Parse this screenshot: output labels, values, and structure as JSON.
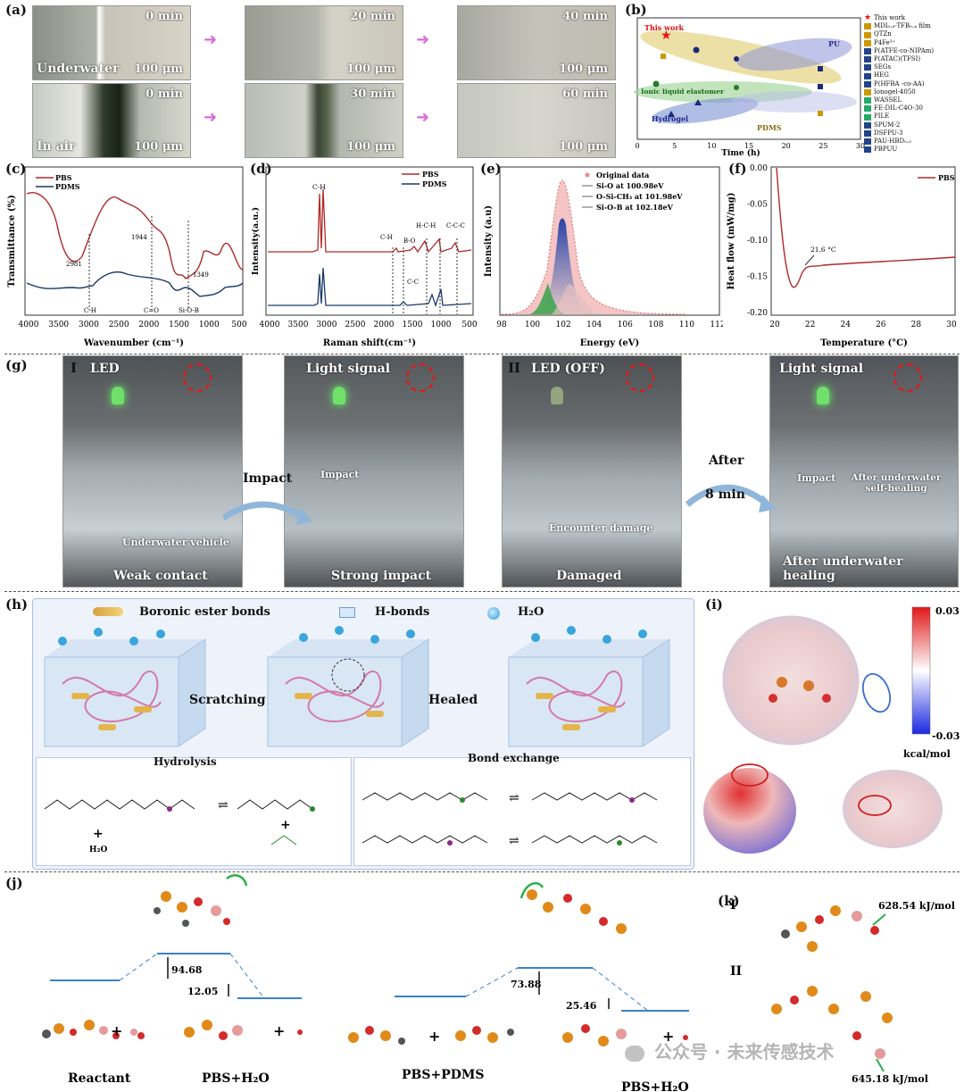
{
  "panels": {
    "a": {
      "label": "(a)",
      "times_top": [
        "0 min",
        "20 min",
        "40 min"
      ],
      "times_bottom": [
        "0 min",
        "30 min",
        "60 min"
      ],
      "scale": "100 μm",
      "label_underwater": "Underwater",
      "label_air": "In air"
    },
    "b": {
      "label": "(b)",
      "xlabel": "Time (h)",
      "xticks": [
        "0",
        "5",
        "10",
        "15",
        "20",
        "25",
        "30"
      ],
      "groups": [
        "This work",
        "PU",
        "Ionic liquid elastomer",
        "Hydrogel",
        "PDMS"
      ],
      "legend": [
        "This work",
        "MDI₀.₈-TFB₀.₄ film",
        "QTZn",
        "P4Fe³⁺",
        "P(ATFE-co-NIPAm)",
        "P(ATAC)(TFSI)",
        "SEGs",
        "HEG",
        "P(HFBA -co-AA)",
        "Ionogel-4050",
        "WASSEL",
        "FE-DIL-C4O-30",
        "PILE",
        "SPUM-2",
        "DSFPU-3",
        "PAU-HBD₀.₅",
        "PBPUU"
      ],
      "legend_colors": [
        "#e11",
        "#c90",
        "#c90",
        "#c90",
        "#248",
        "#248",
        "#248",
        "#248",
        "#248",
        "#c90",
        "#2a6",
        "#2a6",
        "#2a6",
        "#248",
        "#248",
        "#248",
        "#248"
      ]
    },
    "c": {
      "label": "(c)",
      "series": [
        "PBS",
        "PDMS"
      ],
      "ylabel": "Transmittance (%)",
      "xlabel": "Wavenumber (cm⁻¹)",
      "xticks": [
        "4000",
        "3500",
        "3000",
        "2500",
        "2000",
        "1500",
        "1000",
        "500"
      ],
      "annotations": [
        "2981",
        "1944",
        "1349",
        "C-H",
        "C=O",
        "Si-O-B"
      ]
    },
    "d": {
      "label": "(d)",
      "series": [
        "PBS",
        "PDMS"
      ],
      "ylabel": "Intensity(a.u.)",
      "xlabel": "Raman shift(cm⁻¹)",
      "xticks": [
        "4000",
        "3500",
        "3000",
        "2500",
        "2000",
        "1500",
        "1000",
        "500"
      ],
      "annotations": [
        "C-H",
        "C-H",
        "B-O",
        "H-C-H",
        "C-C-C",
        "C-C"
      ]
    },
    "e": {
      "label": "(e)",
      "ylabel": "Intensity (a.u)",
      "xlabel": "Energy  (eV)",
      "xticks": [
        "98",
        "100",
        "102",
        "104",
        "106",
        "108",
        "110",
        "112"
      ],
      "legend": [
        "Original data",
        "Si-O at 100.98eV",
        "O-Si-CH₃ at 101.98eV",
        "Si-O-B at 102.18eV"
      ]
    },
    "f": {
      "label": "(f)",
      "series": [
        "PBS"
      ],
      "ylabel": "Heat flow (mW/mg)",
      "xlabel": "Temperature (°C)",
      "xticks": [
        "20",
        "22",
        "24",
        "26",
        "28",
        "30"
      ],
      "yticks": [
        "0.00",
        "-0.05",
        "-0.10",
        "-0.15",
        "-0.20"
      ],
      "annotation": "21.6 °C"
    },
    "g": {
      "label": "(g)",
      "roman1": "I",
      "roman2": "II",
      "photos": [
        {
          "top": "LED",
          "bottom": "Weak contact",
          "mid": "Underwater vehicle"
        },
        {
          "top": "Light signal",
          "bottom": "Strong impact",
          "mid": "Impact"
        },
        {
          "top": "LED (OFF)",
          "bottom": "Damaged",
          "mid": "Encounter damage"
        },
        {
          "top": "Light signal",
          "bottom": "After underwater healing",
          "mid": "Impact",
          "mid2": "After underwater self-healing"
        }
      ],
      "arrow1": "Impact",
      "arrow2a": "After",
      "arrow2b": "8 min"
    },
    "h": {
      "label": "(h)",
      "legend": [
        "Boronic ester bonds",
        "H-bonds",
        "H₂O"
      ],
      "steps": [
        "Scratching",
        "Healed"
      ],
      "sub1": "Hydrolysis",
      "sub2": "Bond exchange",
      "water": "H₂O"
    },
    "i": {
      "label": "(i)",
      "cbar_max": "0.03",
      "cbar_min": "-0.03",
      "cbar_unit": "kcal/mol"
    },
    "j": {
      "label": "(j)",
      "energies": [
        "94.68",
        "12.05",
        "73.88",
        "25.46"
      ],
      "names": [
        "Reactant",
        "PBS+H₂O",
        "PBS+PDMS",
        "PBS+H₂O"
      ]
    },
    "k": {
      "label": "(k)",
      "roman1": "I",
      "roman2": "II",
      "e1": "628.54 kJ/mol",
      "e2": "645.18 kJ/mol"
    }
  },
  "watermark": "公众号 · 未来传感技术"
}
